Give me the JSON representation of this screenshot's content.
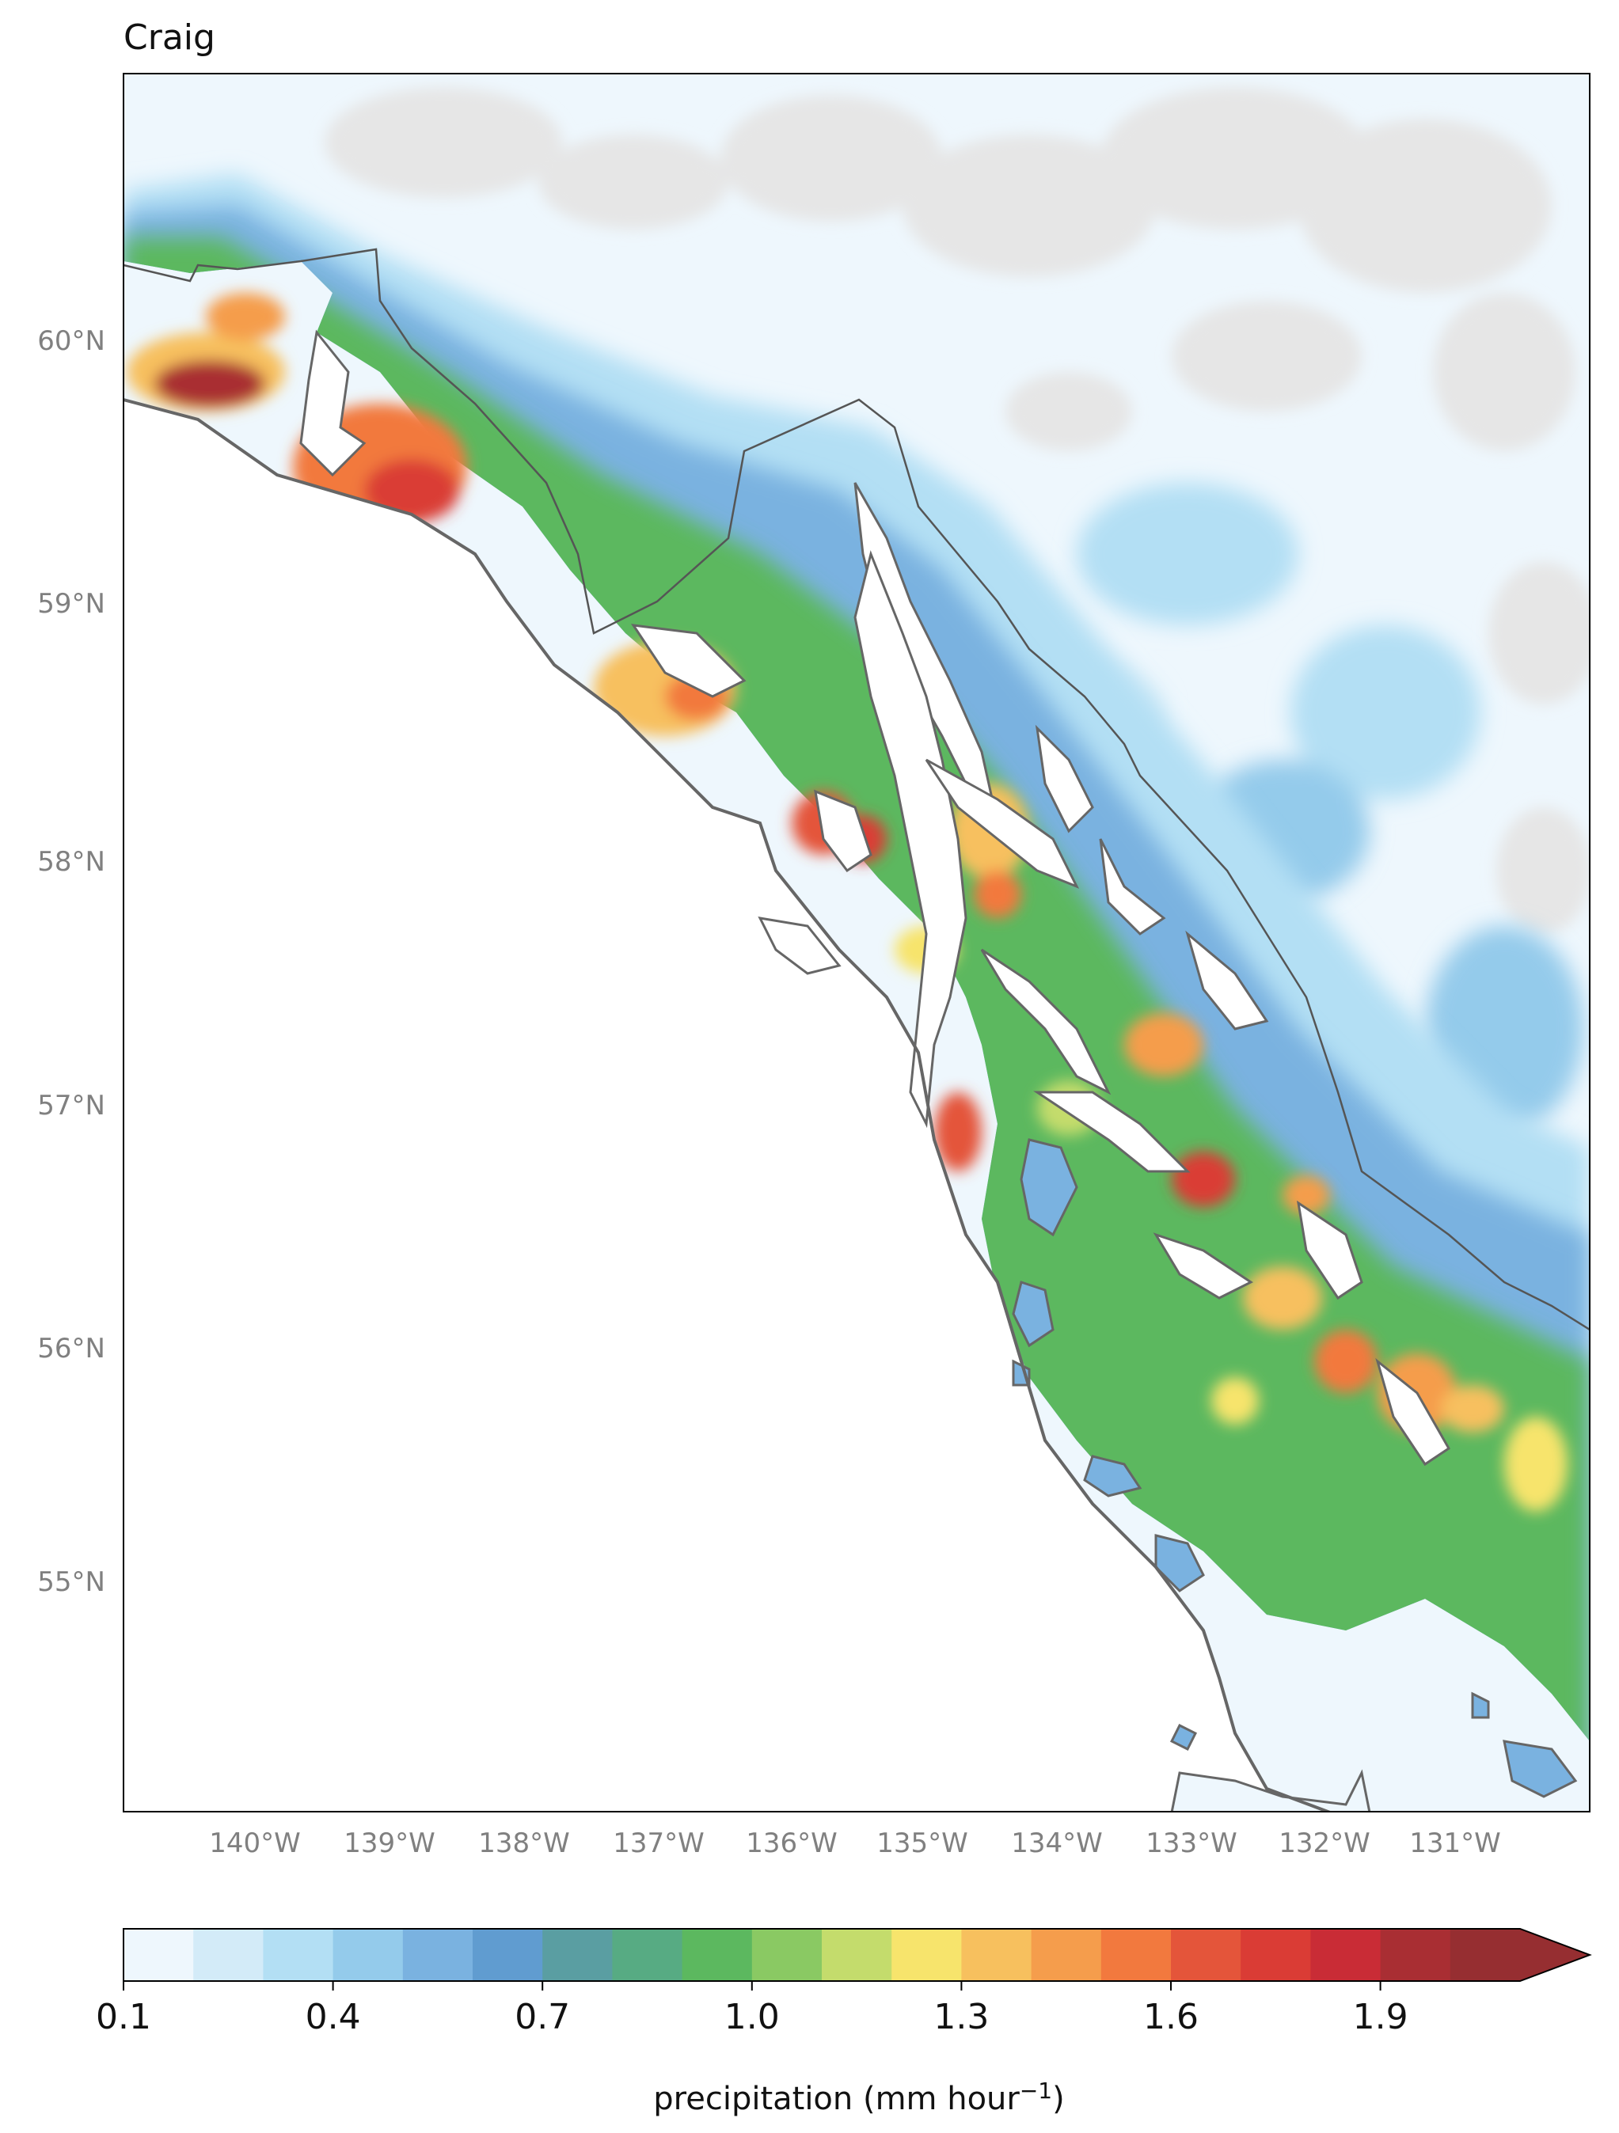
{
  "title": "Craig",
  "map": {
    "lat_labels": [
      "60°N",
      "59°N",
      "58°N",
      "57°N",
      "56°N",
      "55°N"
    ],
    "lon_labels": [
      "140°W",
      "139°W",
      "138°W",
      "137°W",
      "136°W",
      "135°W",
      "134°W",
      "133°W",
      "132°W",
      "131°W"
    ],
    "colors": {
      "land_no_precip": "#e6e6e6",
      "ocean": "#ffffff",
      "coastline": "#666666",
      "border": "#555555"
    }
  },
  "colorbar": {
    "levels": [
      0.1,
      0.2,
      0.3,
      0.4,
      0.5,
      0.6,
      0.7,
      0.8,
      0.9,
      1.0,
      1.1,
      1.2,
      1.3,
      1.4,
      1.5,
      1.6,
      1.7,
      1.8,
      1.9,
      2.0,
      2.1
    ],
    "colors": [
      "#eef7fd",
      "#d3ebf8",
      "#b3dff4",
      "#94cbeb",
      "#7ab2e0",
      "#609cd0",
      "#5a9ea2",
      "#57ab83",
      "#5cb85f",
      "#8ac963",
      "#c4dc6c",
      "#f7e46c",
      "#f7c05e",
      "#f59d4c",
      "#f2793e",
      "#e4553a",
      "#da3c35",
      "#c92c36",
      "#a92e33",
      "#962e31"
    ],
    "extend": "max",
    "tick_labels": [
      "0.1",
      "0.4",
      "0.7",
      "1.0",
      "1.3",
      "1.6",
      "1.9"
    ],
    "label": "precipitation (mm hour",
    "label_superscript": "−1",
    "label_suffix": ")"
  }
}
